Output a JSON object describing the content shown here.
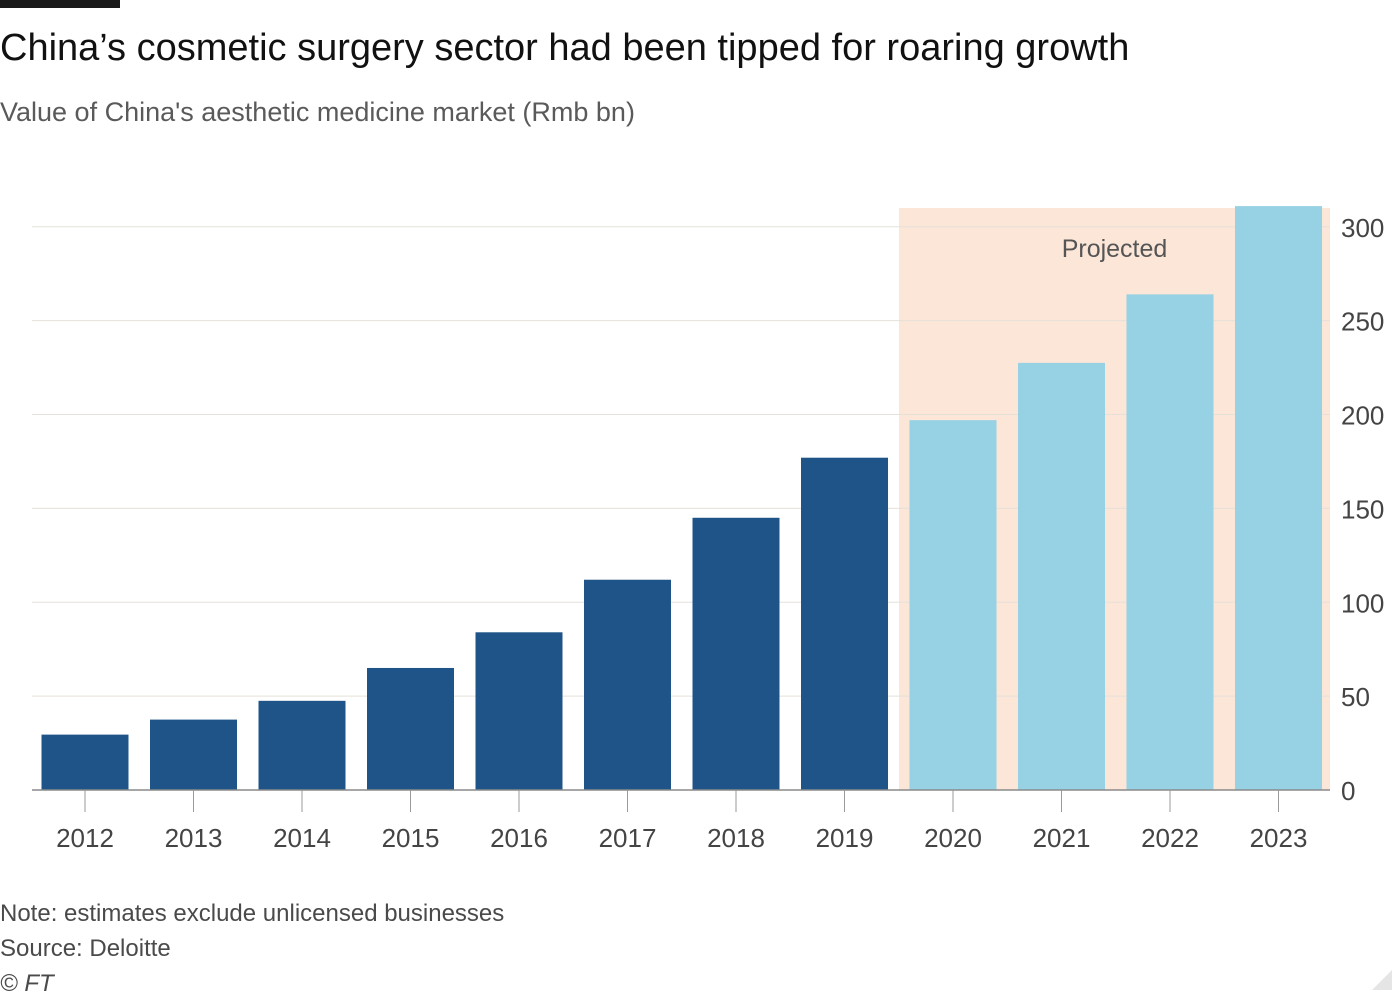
{
  "header": {
    "title": "China’s cosmetic surgery sector had been tipped for roaring growth",
    "subtitle": "Value of China's aesthetic medicine market (Rmb bn)"
  },
  "chart_data": {
    "type": "bar",
    "categories": [
      "2012",
      "2013",
      "2014",
      "2015",
      "2016",
      "2017",
      "2018",
      "2019",
      "2020",
      "2021",
      "2022",
      "2023"
    ],
    "values": [
      29.5,
      37.5,
      47.5,
      65,
      84,
      112,
      145,
      177,
      197,
      227.5,
      264,
      311
    ],
    "projected_from": "2020",
    "projected_label": "Projected",
    "ylim": [
      0,
      310
    ],
    "yticks": [
      0,
      50,
      100,
      150,
      200,
      250,
      300
    ],
    "y_axis_side": "right",
    "grid": true,
    "colors": {
      "actual": "#1f5489",
      "projected": "#96d1e4",
      "projected_band": "#fbe6d8",
      "gridline": "#e6e0da",
      "baseline": "#8a8a8a"
    }
  },
  "footer": {
    "note": "Note: estimates exclude unlicensed businesses",
    "source": "Source: Deloitte",
    "copyright": "© FT"
  }
}
